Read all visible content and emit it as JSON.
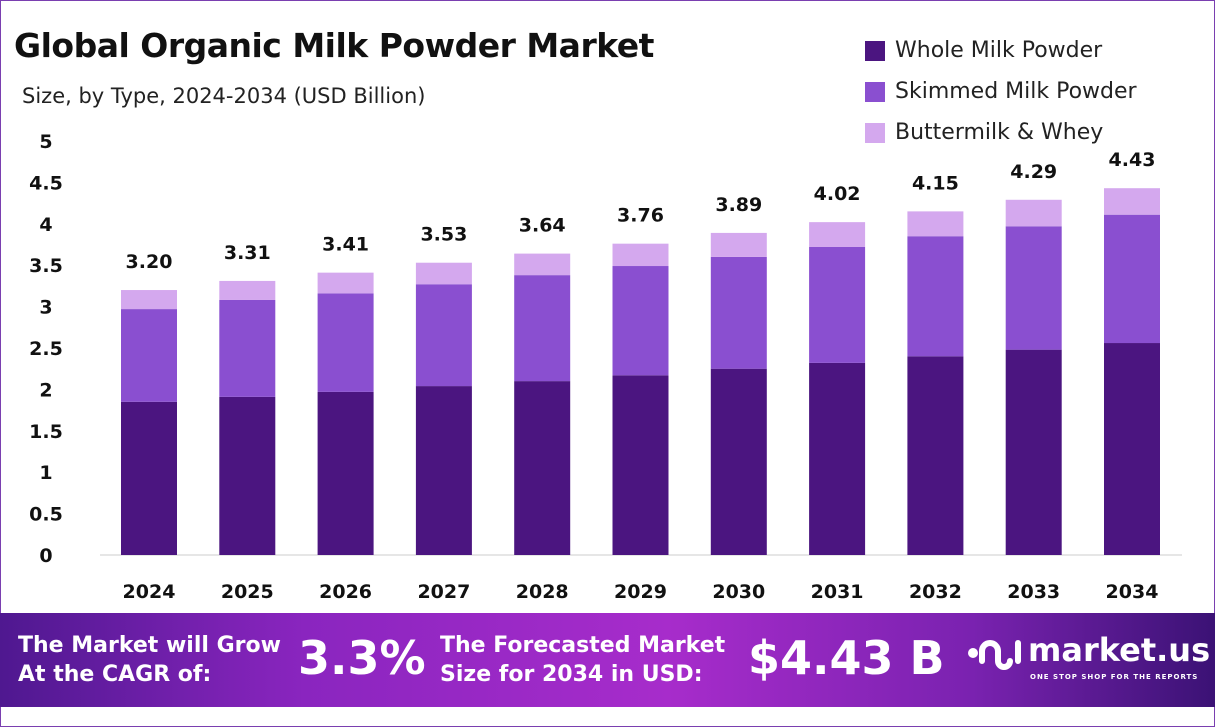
{
  "chart_data": {
    "type": "bar",
    "stacked": true,
    "title": "Global Organic Milk Powder Market",
    "subtitle": "Size, by Type, 2024-2034 (USD Billion)",
    "categories": [
      "2024",
      "2025",
      "2026",
      "2027",
      "2028",
      "2029",
      "2030",
      "2031",
      "2032",
      "2033",
      "2034"
    ],
    "series": [
      {
        "name": "Whole Milk Powder",
        "color": "#4b1580",
        "values": [
          1.85,
          1.91,
          1.97,
          2.04,
          2.1,
          2.17,
          2.25,
          2.32,
          2.4,
          2.48,
          2.56
        ]
      },
      {
        "name": "Skimmed Milk Powder",
        "color": "#8a4fd0",
        "values": [
          1.12,
          1.17,
          1.19,
          1.23,
          1.28,
          1.32,
          1.35,
          1.4,
          1.45,
          1.49,
          1.55
        ]
      },
      {
        "name": "Buttermilk & Whey",
        "color": "#d4a8ee",
        "values": [
          0.23,
          0.23,
          0.25,
          0.26,
          0.26,
          0.27,
          0.29,
          0.3,
          0.3,
          0.32,
          0.32
        ]
      }
    ],
    "totals": [
      "3.20",
      "3.31",
      "3.41",
      "3.53",
      "3.64",
      "3.76",
      "3.89",
      "4.02",
      "4.15",
      "4.29",
      "4.43"
    ],
    "yticks": [
      "0",
      "0.5",
      "1",
      "1.5",
      "2",
      "2.5",
      "3",
      "3.5",
      "4",
      "4.5",
      "5"
    ],
    "ylim": [
      0,
      5
    ],
    "grid": false,
    "legend_position": "top-right"
  },
  "banner": {
    "cagr_label": [
      "The Market will Grow",
      "At the CAGR of:"
    ],
    "cagr_value": "3.3%",
    "forecast_label": [
      "The Forecasted Market",
      "Size for 2034 in USD:"
    ],
    "forecast_value": "$4.43 B",
    "logo_name": "market.us",
    "logo_tagline": "ONE STOP SHOP FOR THE REPORTS"
  }
}
